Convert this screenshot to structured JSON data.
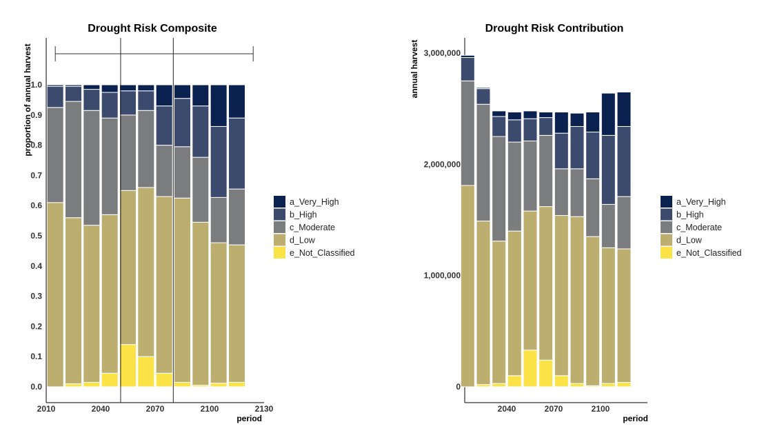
{
  "colors": {
    "a_Very_High": "#0b2251",
    "b_High": "#3b4a6d",
    "c_Moderate": "#7b7c7d",
    "d_Low": "#bcae6f",
    "e_Not_Classified": "#fbe347"
  },
  "chart_data": [
    {
      "type": "bar",
      "stacked": true,
      "title": "Drought Risk Composite",
      "xlabel": "period",
      "ylabel": "proportion of annual harvest",
      "x_ticks": [
        "2010",
        "2040",
        "2070",
        "2100",
        "2130"
      ],
      "y_ticks": [
        "0.0",
        "0.1",
        "0.2",
        "0.3",
        "0.4",
        "0.5",
        "0.6",
        "0.7",
        "0.8",
        "0.9",
        "1.0"
      ],
      "ylim": [
        0,
        1.0
      ],
      "grid": false,
      "legend_position": "right",
      "x": [
        2015,
        2025,
        2035,
        2045,
        2055,
        2065,
        2075,
        2085,
        2095,
        2105,
        2115
      ],
      "series": [
        {
          "name": "e_Not_Classified",
          "values": [
            0.0,
            0.01,
            0.015,
            0.045,
            0.14,
            0.1,
            0.045,
            0.015,
            0.005,
            0.012,
            0.015
          ]
        },
        {
          "name": "d_Low",
          "values": [
            0.61,
            0.55,
            0.52,
            0.525,
            0.51,
            0.56,
            0.585,
            0.61,
            0.54,
            0.465,
            0.455
          ]
        },
        {
          "name": "c_Moderate",
          "values": [
            0.315,
            0.385,
            0.38,
            0.32,
            0.25,
            0.255,
            0.17,
            0.17,
            0.215,
            0.15,
            0.185
          ]
        },
        {
          "name": "b_High",
          "values": [
            0.07,
            0.05,
            0.07,
            0.085,
            0.08,
            0.065,
            0.13,
            0.16,
            0.17,
            0.235,
            0.235
          ]
        },
        {
          "name": "a_Very_High",
          "values": [
            0.005,
            0.005,
            0.015,
            0.025,
            0.02,
            0.02,
            0.07,
            0.045,
            0.07,
            0.138,
            0.11
          ]
        }
      ],
      "annotations": {
        "bracket_range": [
          2015,
          2124
        ],
        "vertical_lines": [
          2051,
          2080
        ]
      }
    },
    {
      "type": "bar",
      "stacked": true,
      "title": "Drought Risk Contribution",
      "xlabel": "period",
      "ylabel": "annual harvest",
      "x_ticks": [
        "2040",
        "2070",
        "2100"
      ],
      "y_ticks": [
        "0",
        "1,000,000",
        "2,000,000",
        "3,000,000"
      ],
      "ylim": [
        0,
        3000000
      ],
      "grid": false,
      "legend_position": "right",
      "x": [
        2015,
        2025,
        2035,
        2045,
        2055,
        2065,
        2075,
        2085,
        2095,
        2105,
        2115
      ],
      "series": [
        {
          "name": "e_Not_Classified",
          "values": [
            0,
            20000,
            30000,
            100000,
            330000,
            240000,
            100000,
            30000,
            10000,
            30000,
            40000
          ]
        },
        {
          "name": "d_Low",
          "values": [
            1810000,
            1470000,
            1280000,
            1300000,
            1250000,
            1380000,
            1440000,
            1500000,
            1340000,
            1220000,
            1200000
          ]
        },
        {
          "name": "c_Moderate",
          "values": [
            940000,
            1050000,
            940000,
            800000,
            630000,
            640000,
            420000,
            430000,
            520000,
            390000,
            470000
          ]
        },
        {
          "name": "b_High",
          "values": [
            210000,
            140000,
            180000,
            200000,
            200000,
            160000,
            320000,
            380000,
            420000,
            620000,
            630000
          ]
        },
        {
          "name": "a_Very_High",
          "values": [
            20000,
            10000,
            50000,
            70000,
            70000,
            50000,
            190000,
            120000,
            180000,
            380000,
            310000
          ]
        }
      ]
    }
  ],
  "legend": [
    {
      "key": "a_Very_High",
      "label": "a_Very_High"
    },
    {
      "key": "b_High",
      "label": "b_High"
    },
    {
      "key": "c_Moderate",
      "label": "c_Moderate"
    },
    {
      "key": "d_Low",
      "label": "d_Low"
    },
    {
      "key": "e_Not_Classified",
      "label": "e_Not_Classified"
    }
  ]
}
